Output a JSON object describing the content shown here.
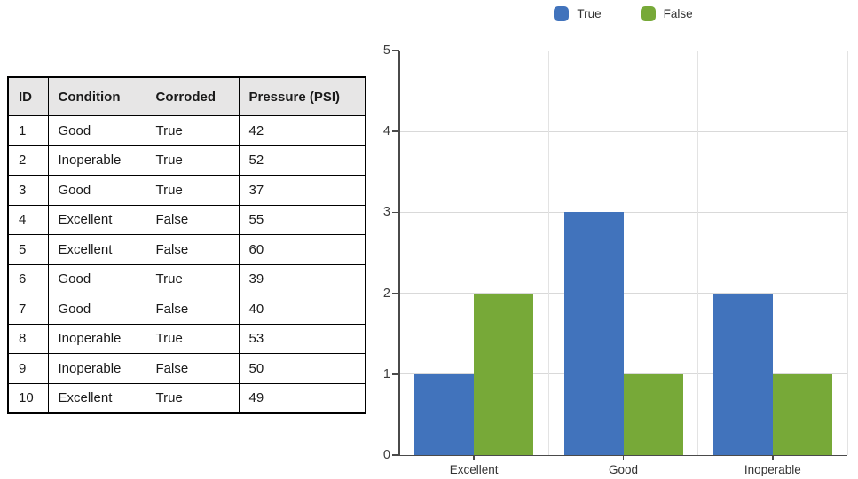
{
  "table": {
    "headers": [
      "ID",
      "Condition",
      "Corroded",
      "Pressure (PSI)"
    ],
    "rows": [
      [
        "1",
        "Good",
        "True",
        "42"
      ],
      [
        "2",
        "Inoperable",
        "True",
        "52"
      ],
      [
        "3",
        "Good",
        "True",
        "37"
      ],
      [
        "4",
        "Excellent",
        "False",
        "55"
      ],
      [
        "5",
        "Excellent",
        "False",
        "60"
      ],
      [
        "6",
        "Good",
        "True",
        "39"
      ],
      [
        "7",
        "Good",
        "False",
        "40"
      ],
      [
        "8",
        "Inoperable",
        "True",
        "53"
      ],
      [
        "9",
        "Inoperable",
        "False",
        "50"
      ],
      [
        "10",
        "Excellent",
        "True",
        "49"
      ]
    ]
  },
  "chart_data": {
    "type": "bar",
    "categories": [
      "Excellent",
      "Good",
      "Inoperable"
    ],
    "series": [
      {
        "name": "True",
        "color": "#4173BC",
        "values": [
          1,
          3,
          2
        ]
      },
      {
        "name": "False",
        "color": "#77A938",
        "values": [
          2,
          1,
          1
        ]
      }
    ],
    "title": "",
    "xlabel": "",
    "ylabel": "",
    "ylim": [
      0,
      5
    ],
    "yticks": [
      0,
      1,
      2,
      3,
      4,
      5
    ],
    "grid": true,
    "legend_position": "top-center"
  },
  "colors": {
    "axis": "#4a4a4a",
    "gridline_h": "#d9d9d9",
    "gridline_v": "#e3e3e3",
    "table_header_bg": "#e7e6e6",
    "table_border": "#000000",
    "bar_true": "#4173BC",
    "bar_false": "#77A938"
  }
}
